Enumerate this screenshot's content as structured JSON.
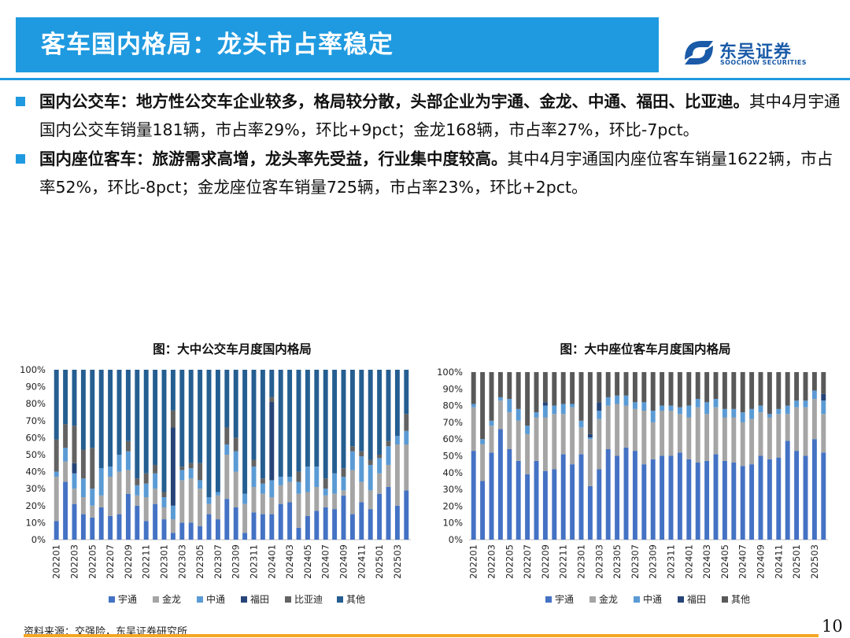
{
  "header": {
    "title": "客车国内格局：龙头市占率稳定",
    "logo_cn": "东吴证券",
    "logo_en": "SOOCHOW SECURITIES"
  },
  "bullets": [
    {
      "head": "国内公交车：地方性公交车企业较多，格局较分散，头部企业为宇通、金龙、中通、福田、比亚迪。",
      "body": "其中4月宇通国内公交车销量181辆，市占率29%，环比+9pct；金龙168辆，市占率27%，环比-7pct。"
    },
    {
      "head": "国内座位客车：旅游需求高增，龙头率先受益，行业集中度较高。",
      "body": "其中4月宇通国内座位客车销量1622辆，市占率52%，环比-8pct；金龙座位客车销量725辆，市占率23%，环比+2pct。"
    }
  ],
  "colors": {
    "accent": "#1f9ae0",
    "宇通": "#4472c4",
    "金龙": "#a5a5a5",
    "中通": "#5b9bd5",
    "福田": "#264478",
    "比亚迪": "#636363",
    "其他": "#255e91",
    "其他_seat": "#595959"
  },
  "chart_data": [
    {
      "type": "bar",
      "stacked": true,
      "title": "图：大中公交车月度国内格局",
      "ylim": [
        0,
        100
      ],
      "y_ticks": [
        "0%",
        "10%",
        "20%",
        "30%",
        "40%",
        "50%",
        "60%",
        "70%",
        "80%",
        "90%",
        "100%"
      ],
      "x_tick_labels": [
        "202201",
        "202203",
        "202205",
        "202207",
        "202209",
        "202211",
        "202301",
        "202303",
        "202305",
        "202307",
        "202309",
        "202311",
        "202401",
        "202403",
        "202405",
        "202407",
        "202409",
        "202411",
        "202501",
        "202503"
      ],
      "legend": [
        "宇通",
        "金龙",
        "中通",
        "福田",
        "比亚迪",
        "其他"
      ],
      "legend_position": "bottom",
      "categories": [
        "202201",
        "202202",
        "202203",
        "202204",
        "202205",
        "202206",
        "202207",
        "202208",
        "202209",
        "202210",
        "202211",
        "202212",
        "202301",
        "202302",
        "202303",
        "202304",
        "202305",
        "202306",
        "202307",
        "202308",
        "202309",
        "202310",
        "202311",
        "202312",
        "202401",
        "202402",
        "202403",
        "202404",
        "202405",
        "202406",
        "202407",
        "202408",
        "202409",
        "202410",
        "202411",
        "202412",
        "202501",
        "202502",
        "202503",
        "202504"
      ],
      "series": [
        {
          "name": "宇通",
          "values": [
            11,
            34,
            21,
            15,
            13,
            19,
            14,
            15,
            27,
            20,
            11,
            21,
            12,
            4,
            10,
            10,
            8,
            15,
            12,
            24,
            19,
            4,
            16,
            15,
            15,
            21,
            22,
            7,
            14,
            17,
            19,
            18,
            26,
            15,
            22,
            18,
            27,
            31,
            20,
            29
          ]
        },
        {
          "name": "金龙",
          "values": [
            26,
            12,
            9,
            10,
            7,
            7,
            23,
            25,
            14,
            6,
            14,
            9,
            7,
            8,
            25,
            26,
            22,
            6,
            14,
            26,
            21,
            17,
            15,
            12,
            10,
            11,
            12,
            20,
            14,
            14,
            7,
            9,
            3,
            26,
            12,
            11,
            12,
            13,
            36,
            27
          ]
        },
        {
          "name": "中通",
          "values": [
            3,
            8,
            9,
            11,
            10,
            16,
            6,
            10,
            11,
            6,
            8,
            9,
            6,
            8,
            6,
            6,
            5,
            4,
            2,
            6,
            12,
            6,
            12,
            6,
            10,
            5,
            3,
            7,
            15,
            12,
            4,
            12,
            8,
            11,
            15,
            15,
            9,
            11,
            5,
            8
          ]
        },
        {
          "name": "福田",
          "values": [
            0,
            0,
            6,
            0,
            0,
            0,
            0,
            0,
            0,
            0,
            0,
            0,
            0,
            46,
            0,
            0,
            0,
            0,
            0,
            0,
            0,
            0,
            0,
            0,
            46,
            0,
            0,
            0,
            0,
            0,
            0,
            0,
            0,
            0,
            0,
            0,
            0,
            0,
            0,
            0
          ]
        },
        {
          "name": "比亚迪",
          "values": [
            19,
            14,
            22,
            17,
            24,
            0,
            0,
            0,
            6,
            4,
            6,
            5,
            3,
            10,
            2,
            3,
            10,
            0,
            0,
            10,
            8,
            0,
            4,
            3,
            3,
            0,
            0,
            6,
            0,
            0,
            6,
            0,
            5,
            3,
            3,
            3,
            2,
            3,
            0,
            10
          ]
        },
        {
          "name": "其他",
          "values": [
            41,
            32,
            33,
            47,
            46,
            58,
            57,
            50,
            42,
            64,
            61,
            56,
            72,
            24,
            57,
            55,
            55,
            75,
            72,
            34,
            40,
            73,
            53,
            64,
            16,
            63,
            63,
            60,
            57,
            57,
            64,
            61,
            58,
            45,
            48,
            53,
            50,
            42,
            39,
            26
          ]
        }
      ]
    },
    {
      "type": "bar",
      "stacked": true,
      "title": "图：大中座位客车月度国内格局",
      "ylim": [
        0,
        100
      ],
      "y_ticks": [
        "0%",
        "10%",
        "20%",
        "30%",
        "40%",
        "50%",
        "60%",
        "70%",
        "80%",
        "90%",
        "100%"
      ],
      "x_tick_labels": [
        "202201",
        "202203",
        "202205",
        "202207",
        "202209",
        "202211",
        "202301",
        "202303",
        "202305",
        "202307",
        "202309",
        "202311",
        "202401",
        "202403",
        "202405",
        "202407",
        "202409",
        "202411",
        "202501",
        "202503"
      ],
      "legend": [
        "宇通",
        "金龙",
        "中通",
        "福田",
        "其他"
      ],
      "legend_position": "bottom",
      "categories": [
        "202201",
        "202202",
        "202203",
        "202204",
        "202205",
        "202206",
        "202207",
        "202208",
        "202209",
        "202210",
        "202211",
        "202212",
        "202301",
        "202302",
        "202303",
        "202304",
        "202305",
        "202306",
        "202307",
        "202308",
        "202309",
        "202310",
        "202311",
        "202312",
        "202401",
        "202402",
        "202403",
        "202404",
        "202405",
        "202406",
        "202407",
        "202408",
        "202409",
        "202410",
        "202411",
        "202412",
        "202501",
        "202502",
        "202503",
        "202504"
      ],
      "series": [
        {
          "name": "宇通",
          "values": [
            53,
            35,
            52,
            66,
            54,
            47,
            39,
            47,
            41,
            42,
            51,
            45,
            51,
            32,
            42,
            54,
            50,
            55,
            53,
            45,
            48,
            50,
            50,
            52,
            48,
            46,
            47,
            51,
            47,
            46,
            44,
            45,
            50,
            48,
            49,
            59,
            53,
            50,
            60,
            52
          ]
        },
        {
          "name": "金龙",
          "values": [
            26,
            22,
            16,
            17,
            22,
            24,
            24,
            26,
            32,
            33,
            24,
            34,
            16,
            28,
            30,
            26,
            31,
            25,
            25,
            32,
            22,
            27,
            27,
            23,
            25,
            33,
            28,
            28,
            26,
            27,
            26,
            27,
            26,
            25,
            26,
            16,
            26,
            29,
            24,
            23
          ]
        },
        {
          "name": "中通",
          "values": [
            2,
            3,
            3,
            2,
            8,
            7,
            5,
            3,
            7,
            5,
            6,
            2,
            4,
            1,
            5,
            5,
            5,
            6,
            4,
            5,
            7,
            3,
            3,
            4,
            7,
            5,
            7,
            5,
            5,
            5,
            6,
            6,
            4,
            2,
            3,
            5,
            4,
            4,
            5,
            8
          ]
        },
        {
          "name": "福田",
          "values": [
            0,
            0,
            0,
            0,
            0,
            0,
            0,
            0,
            2,
            0,
            0,
            0,
            0,
            2,
            5,
            0,
            0,
            0,
            0,
            0,
            0,
            0,
            0,
            0,
            0,
            0,
            0,
            0,
            0,
            0,
            0,
            0,
            0,
            0,
            0,
            0,
            0,
            0,
            0,
            4
          ]
        },
        {
          "name": "其他",
          "values": [
            19,
            40,
            29,
            15,
            16,
            22,
            32,
            24,
            18,
            20,
            19,
            19,
            29,
            37,
            18,
            15,
            14,
            14,
            18,
            18,
            23,
            20,
            20,
            21,
            20,
            16,
            18,
            16,
            22,
            22,
            24,
            22,
            20,
            25,
            22,
            20,
            17,
            17,
            11,
            13
          ]
        }
      ]
    }
  ],
  "footer": {
    "source": "资料来源：交强险，东吴证券研究所",
    "page": "10"
  }
}
